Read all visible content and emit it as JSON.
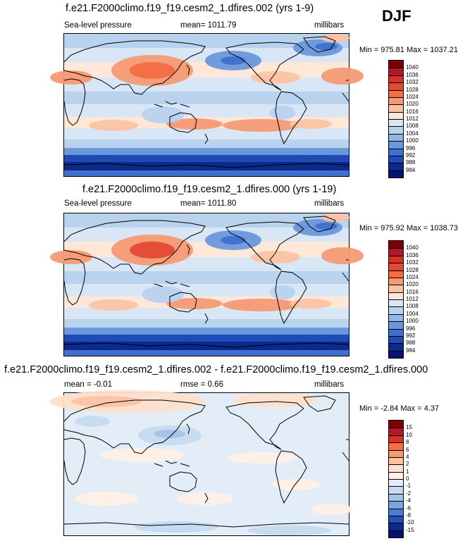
{
  "season": "DJF",
  "panels": [
    {
      "title": "f.e21.F2000climo.f19_f19.cesm2_1.dfires.002 (yrs 1-9)",
      "left_label": "Sea-level pressure",
      "center_label": "mean= 1011.79",
      "right_label": "millibars",
      "minmax": "Min = 975.81 Max = 1037.21",
      "colorbar": [
        "1040",
        "1036",
        "1032",
        "1028",
        "1024",
        "1020",
        "1016",
        "1012",
        "1008",
        "1004",
        "1000",
        "996",
        "992",
        "988",
        "984"
      ],
      "kind": "slp"
    },
    {
      "title": "f.e21.F2000climo.f19_f19.cesm2_1.dfires.000 (yrs 1-19)",
      "left_label": "Sea-level pressure",
      "center_label": "mean= 1011.80",
      "right_label": "millibars",
      "minmax": "Min = 975.92 Max = 1038.73",
      "colorbar": [
        "1040",
        "1036",
        "1032",
        "1028",
        "1024",
        "1020",
        "1016",
        "1012",
        "1008",
        "1004",
        "1000",
        "996",
        "992",
        "988",
        "984"
      ],
      "kind": "slp"
    },
    {
      "title": "f.e21.F2000climo.f19_f19.cesm2_1.dfires.002 - f.e21.F2000climo.f19_f19.cesm2_1.dfires.000",
      "left_label": "mean =  -0.01",
      "center_label": "rmse =   0.66",
      "right_label": "millibars",
      "minmax": "Min =  -2.84 Max =  4.37",
      "colorbar": [
        "15",
        "10",
        "8",
        "6",
        "4",
        "2",
        "1",
        "0",
        "-1",
        "-2",
        "-4",
        "-6",
        "-8",
        "-10",
        "-15"
      ],
      "kind": "diff"
    }
  ],
  "colors": {
    "slp_scale": [
      "#7f0000",
      "#b2182b",
      "#d73027",
      "#e34a33",
      "#f46d43",
      "#f59a74",
      "#fbc3a4",
      "#fde8d8",
      "#d8e6f5",
      "#b9d2ee",
      "#92b7e6",
      "#6a98dc",
      "#3f70cf",
      "#1e4bb8",
      "#0b2a8a",
      "#051470"
    ],
    "diff_scale": [
      "#7f0000",
      "#b2182b",
      "#d73027",
      "#f46d43",
      "#f59a74",
      "#fbc3a4",
      "#fde0cc",
      "#fdf0e6",
      "#e2edf8",
      "#c6dbf0",
      "#a2c2e8",
      "#7aa5dd",
      "#4d7dd0",
      "#2450b8",
      "#0b2a8a",
      "#051470"
    ]
  }
}
